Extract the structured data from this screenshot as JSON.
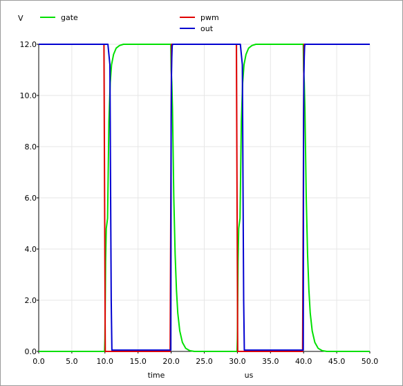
{
  "chart_data": {
    "type": "line",
    "ylabel": "V",
    "xlabel": "time",
    "xunit": "us",
    "xlim": [
      0,
      50
    ],
    "ylim": [
      0,
      12
    ],
    "xticks": [
      "0.0",
      "5.0",
      "10.0",
      "15.0",
      "20.0",
      "25.0",
      "30.0",
      "35.0",
      "40.0",
      "45.0",
      "50.0"
    ],
    "yticks": [
      "0.0",
      "2.0",
      "4.0",
      "6.0",
      "8.0",
      "10.0",
      "12.0"
    ],
    "grid": true,
    "legend_placement": "top",
    "series": [
      {
        "name": "gate",
        "color": "#00e000",
        "x": [
          0,
          9.95,
          10.0,
          10.1,
          10.2,
          10.4,
          10.6,
          10.8,
          11.0,
          11.3,
          11.7,
          12.2,
          12.8,
          13.5,
          15,
          19.95,
          20.0,
          20.1,
          20.2,
          20.4,
          20.6,
          20.8,
          21.0,
          21.3,
          21.7,
          22.2,
          22.8,
          23.5,
          25,
          29.95,
          30.0,
          30.1,
          30.2,
          30.4,
          30.6,
          30.8,
          31.0,
          31.3,
          31.7,
          32.2,
          32.8,
          33.5,
          35,
          39.95,
          40.0,
          40.1,
          40.2,
          40.4,
          40.6,
          40.8,
          41.0,
          41.3,
          41.7,
          42.2,
          42.8,
          43.5,
          45,
          50
        ],
        "y": [
          0,
          0,
          0.5,
          3.5,
          4.8,
          5.2,
          9.0,
          10.5,
          11.2,
          11.6,
          11.85,
          11.95,
          12,
          12,
          12,
          12,
          11.0,
          10.5,
          9.5,
          6.0,
          3.8,
          2.4,
          1.5,
          0.8,
          0.35,
          0.12,
          0.03,
          0,
          0,
          0,
          0.5,
          3.5,
          4.8,
          5.2,
          9.0,
          10.5,
          11.2,
          11.6,
          11.85,
          11.95,
          12,
          12,
          12,
          12,
          11.0,
          10.5,
          9.5,
          6.0,
          3.8,
          2.4,
          1.5,
          0.8,
          0.35,
          0.12,
          0.03,
          0,
          0,
          0
        ]
      },
      {
        "name": "pwm",
        "color": "#e00000",
        "x": [
          0,
          9.85,
          9.95,
          10.05,
          19.85,
          19.95,
          20.05,
          29.85,
          29.95,
          30.05,
          39.85,
          39.95,
          40.05,
          50
        ],
        "y": [
          12,
          12,
          6,
          0,
          0,
          6,
          12,
          12,
          6,
          0,
          0,
          6,
          12,
          12
        ]
      },
      {
        "name": "out",
        "color": "#0000d0",
        "x": [
          0,
          10.45,
          10.6,
          10.75,
          10.8,
          10.85,
          10.95,
          11.05,
          19.95,
          20.0,
          20.05,
          20.1,
          20.15,
          20.2,
          20.3,
          20.5,
          30.45,
          30.6,
          30.75,
          30.8,
          30.85,
          30.95,
          31.05,
          39.95,
          40.0,
          40.05,
          40.1,
          40.15,
          40.2,
          40.3,
          40.5,
          50
        ],
        "y": [
          12,
          12,
          11.6,
          11.2,
          9.0,
          6.5,
          2.0,
          0.05,
          0.05,
          9.0,
          10.8,
          11.5,
          11.9,
          12,
          12,
          12,
          12,
          11.6,
          11.2,
          9.0,
          6.5,
          2.0,
          0.05,
          0.05,
          9.0,
          10.8,
          11.5,
          11.9,
          12,
          12,
          12,
          12
        ]
      }
    ]
  }
}
